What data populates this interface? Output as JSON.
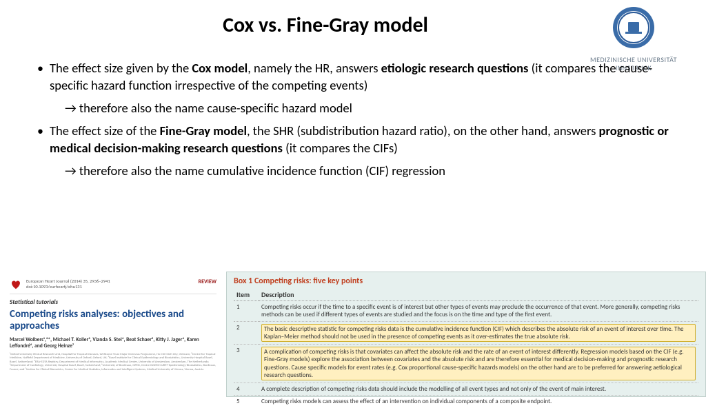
{
  "title": "Cox vs. Fine-Gray model",
  "logo": {
    "line1": "MEDIZINISCHE UNIVERSITÄT",
    "line2": "INNSBRUCK",
    "seal_outer": "#3a6ca8",
    "seal_inner": "#ffffff",
    "seal_ring": "#2a5a98"
  },
  "bullets": {
    "b1_pre": "The effect size given by the ",
    "b1_bold1": "Cox model",
    "b1_mid": ", namely the HR, answers ",
    "b1_bold2": "etiologic research questions",
    "b1_post": " (it compares the cause-specific hazard function irrespective of the competing events)",
    "sub1": "→ therefore also the name cause-specific hazard model",
    "b2_pre": "The effect size of the ",
    "b2_bold1": "Fine-Gray model",
    "b2_mid": ", the SHR (subdistribution hazard ratio), on the other hand, answers ",
    "b2_bold2": "prognostic or medical decision-making research questions",
    "b2_post": " (it compares the CIFs)",
    "sub2": "→ therefore also the name cumulative incidence function (CIF) regression"
  },
  "paper": {
    "journal": "European Heart Journal (2014) 35, 2936–2941",
    "doi": "doi:10.1093/eurheartj/ehu131",
    "review": "REVIEW",
    "tutorials": "Statistical tutorials",
    "title": "Competing risks analyses: objectives and approaches",
    "authors": "Marcel Wolbers¹,²*, Michael T. Koller³, Vianda S. Stel⁴, Beat Schaer⁵, Kitty J. Jager⁴, Karen Leffondré⁶, and Georg Heinze⁷",
    "affil": "¹Oxford University Clinical Research Unit, Hospital for Tropical Diseases, Wellcome Trust Major Overseas Programme, Ho Chi Minh City, Vietnam; ²Centre for Tropical Medicine, Nuffield Department of Medicine, University of Oxford, Oxford, UK; ³Basel Institute for Clinical Epidemiology and Biostatistics, University Hospital Basel, Basel, Switzerland; ⁴ERA-EDTA Registry, Department of Medical Informatics, Academic Medical Center, University of Amsterdam, Amsterdam, The Netherlands; ⁵Department of Cardiology, University Hospital Basel, Basel, Switzerland; ⁶University of Bordeaux, ISPED, Centre INSERM U897-Epidemiology-Biostatistics, Bordeaux, France; and ⁷Section for Clinical Biometrics, Center for Medical Statistics, Informatics and Intelligent Systems, Medical University of Vienna, Vienna, Austria"
  },
  "box": {
    "title": "Box 1   Competing risks: five key points",
    "col1": "Item",
    "col2": "Description",
    "rows": [
      {
        "n": "1",
        "text": "Competing risks occur if the time to a specific event is of interest but other types of events may preclude the occurrence of that event. More generally, competing risks methods can be used if different types of events are studied and the focus is on the time and type of the first event.",
        "hl": false
      },
      {
        "n": "2",
        "text": "The basic descriptive statistic for competing risks data is the cumulative incidence function (CIF) which describes the absolute risk of an event of interest over time. The Kaplan–Meier method should not be used in the presence of competing events as it over-estimates the true absolute risk.",
        "hl": true
      },
      {
        "n": "3",
        "text": "A complication of competing risks is that covariates can affect the absolute risk and the rate of an event of interest differently. Regression models based on the CIF (e.g. Fine-Gray models) explore the association between covariates and the absolute risk and are therefore essential for medical decision-making and prognostic research questions. Cause specific models for event rates (e.g. Cox proportional cause-specific hazards models) on the other hand are to be preferred for answering aetiological research questions.",
        "hl": true
      },
      {
        "n": "4",
        "text": "A complete description of competing risks data should include the modelling of all event types and not only of the event of main interest.",
        "hl": false
      },
      {
        "n": "5",
        "text": "Competing risks models can assess the effect of an intervention on individual components of a composite endpoint.",
        "hl": false
      }
    ]
  }
}
